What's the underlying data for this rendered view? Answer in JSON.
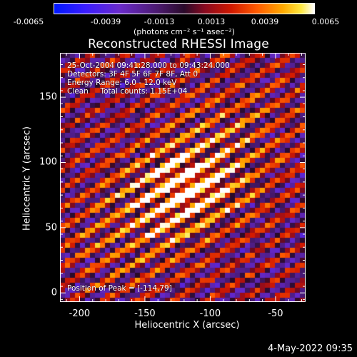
{
  "colorbar": {
    "tick_labels": [
      "-0.0065",
      "-0.0039",
      "-0.0013",
      "0.0013",
      "0.0039",
      "0.0065"
    ],
    "unit_label": "(photons cm⁻² s⁻¹ asec⁻²)",
    "range": [
      -0.0065,
      0.0065
    ]
  },
  "title": "Reconstructed RHESSI Image",
  "info": {
    "time_range": "25-Oct-2004 09:41:28.000 to 09:43:24.000",
    "detectors": "Detectors: 3F 4F 5F 6F 7F 8F, Att 0",
    "energy": "Energy Range: 6.0 - 12.0 keV",
    "clean": "Clean     Total counts: 1.15E+04",
    "peak": "Position of Peak = [-114,79]"
  },
  "axes": {
    "xlabel": "Heliocentric X (arcsec)",
    "ylabel": "Heliocentric Y (arcsec)",
    "xticks": [
      "-200",
      "-150",
      "-100",
      "-50"
    ],
    "yticks": [
      "0",
      "50",
      "100",
      "150"
    ],
    "x_values": [
      -200,
      -150,
      -100,
      -50
    ],
    "y_values": [
      0,
      50,
      100,
      150
    ],
    "xlim": [
      -215,
      -27
    ],
    "ylim": [
      -7,
      184
    ]
  },
  "footer": "4-May-2022 09:35"
}
